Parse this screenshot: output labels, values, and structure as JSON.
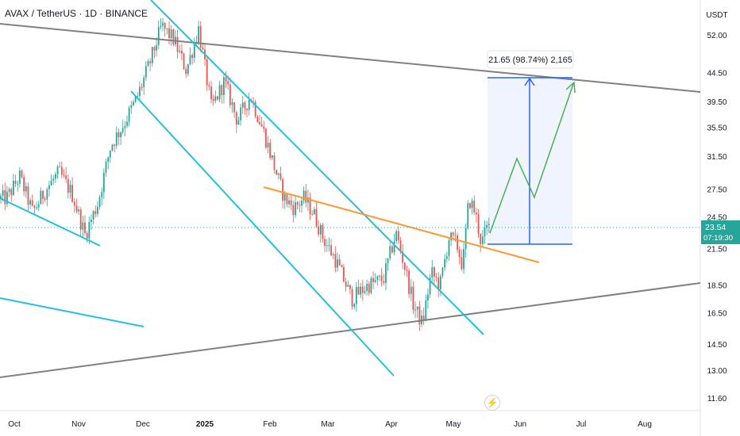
{
  "header": {
    "symbol_title": "AVAX / TetherUS · 1D · BINANCE"
  },
  "axis": {
    "currency_label": "USDT"
  },
  "price_badge": {
    "price": "23.54",
    "countdown": "07:19:30"
  },
  "measure_label": "21.65 (98.74%) 2,165",
  "colors": {
    "up": "#26a69a",
    "down": "#ef5350",
    "channel": "#22c1dc",
    "trend_gray": "#808080",
    "orange": "#ff9830",
    "measure_blue": "#2962ff",
    "projection": "#4caf50"
  },
  "chart_data": {
    "type": "candlestick",
    "ylabel": "USDT",
    "y_ticks": [
      11.6,
      13.0,
      14.5,
      16.5,
      18.5,
      21.5,
      24.5,
      27.5,
      31.5,
      35.5,
      39.5,
      44.5,
      52.0
    ],
    "x_ticks": [
      "Oct",
      "Nov",
      "Dec",
      "2025",
      "Feb",
      "Mar",
      "Apr",
      "May",
      "Jun",
      "Jul",
      "Aug"
    ],
    "last_price": 23.54,
    "anchor_points": [
      [
        "Oct",
        26.5
      ],
      [
        "Oct",
        29.0
      ],
      [
        "Oct",
        25.0
      ],
      [
        "Oct",
        27.5
      ],
      [
        "Oct",
        29.5
      ],
      [
        "Oct",
        27.0
      ],
      [
        "Nov",
        22.8
      ],
      [
        "Nov",
        26.0
      ],
      [
        "Nov",
        33.0
      ],
      [
        "Nov",
        36.0
      ],
      [
        "Nov",
        40.0
      ],
      [
        "Dec",
        46.0
      ],
      [
        "Dec",
        54.0
      ],
      [
        "Dec",
        51.0
      ],
      [
        "Dec",
        45.0
      ],
      [
        "Dec",
        53.5
      ],
      [
        "2025",
        38.5
      ],
      [
        "2025",
        43.0
      ],
      [
        "2025",
        36.5
      ],
      [
        "2025",
        40.5
      ],
      [
        "2025",
        35.0
      ],
      [
        "Feb",
        30.0
      ],
      [
        "Feb",
        26.5
      ],
      [
        "Feb",
        25.5
      ],
      [
        "Feb",
        26.5
      ],
      [
        "Feb",
        25.0
      ],
      [
        "Feb",
        22.5
      ],
      [
        "Mar",
        20.5
      ],
      [
        "Mar",
        17.5
      ],
      [
        "Mar",
        18.5
      ],
      [
        "Mar",
        19.0
      ],
      [
        "Apr",
        23.0
      ],
      [
        "Apr",
        20.0
      ],
      [
        "Apr",
        17.0
      ],
      [
        "Apr",
        15.8
      ],
      [
        "Apr",
        19.5
      ],
      [
        "Apr",
        18.5
      ],
      [
        "Apr",
        22.5
      ],
      [
        "May",
        22.0
      ],
      [
        "May",
        20.0
      ],
      [
        "May",
        26.5
      ],
      [
        "May",
        25.0
      ],
      [
        "May",
        22.0
      ],
      [
        "May",
        23.54
      ]
    ]
  }
}
